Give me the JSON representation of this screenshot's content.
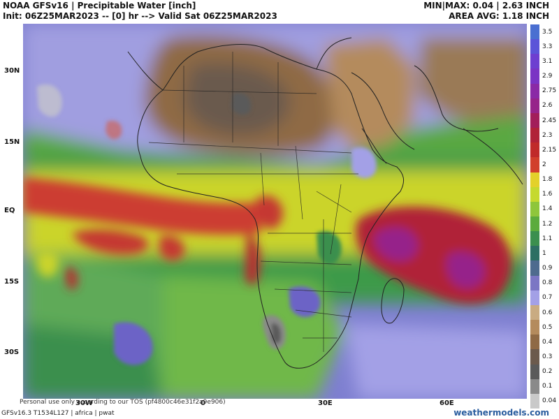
{
  "header": {
    "title": "NOAA GFSv16 |  Precipitable Water [inch]",
    "init_line": "Init: 06Z25MAR2023 -- [0] hr --> Valid Sat 06Z25MAR2023",
    "minmax": "MIN|MAX: 0.04 | 2.63 INCH",
    "area_avg": "AREA AVG: 1.18 INCH"
  },
  "map": {
    "region": "africa",
    "lat_labels": [
      "30N",
      "15N",
      "EQ",
      "15S",
      "30S"
    ],
    "lon_labels": [
      "30W",
      "0",
      "30E",
      "60E"
    ]
  },
  "colorbar": {
    "labels": [
      "3.5",
      "3.3",
      "3.1",
      "2.9",
      "2.75",
      "2.6",
      "2.45",
      "2.3",
      "2.15",
      "2",
      "1.8",
      "1.6",
      "1.4",
      "1.2",
      "1.1",
      "1",
      "0.9",
      "0.8",
      "0.7",
      "0.6",
      "0.5",
      "0.4",
      "0.3",
      "0.2",
      "0.1",
      "0.04"
    ],
    "colors": [
      "#4a6fd1",
      "#5b54d8",
      "#6d3fd0",
      "#7a34c4",
      "#8a2aa6",
      "#96248a",
      "#a21e5a",
      "#b02238",
      "#c02a2a",
      "#d13f2c",
      "#e3d12a",
      "#c5d92f",
      "#8ec63b",
      "#5bab3c",
      "#3b8f4e",
      "#2d6f63",
      "#4e6b8e",
      "#7b76c4",
      "#a3a0e6",
      "#c9ab82",
      "#b48b5d",
      "#8f6a45",
      "#6b5a4d",
      "#5a5a5a",
      "#8a8a8a",
      "#c9c9c9"
    ]
  },
  "footer": {
    "disclaimer": "Personal use only according to our TOS (pf4800c46e31f2a9e906)",
    "model": "GFSv16.3 T1534L127 | africa | pwat",
    "brand": "weathermodels.com"
  }
}
